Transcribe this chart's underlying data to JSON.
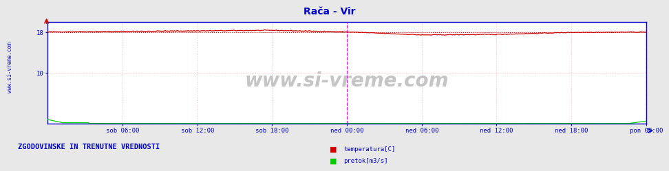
{
  "title": "Rača - Vir",
  "title_color": "#0000cc",
  "title_fontsize": 10,
  "bg_color": "#e8e8e8",
  "plot_bg_color": "#ffffff",
  "xlim": [
    0,
    576
  ],
  "ylim": [
    0,
    20
  ],
  "xtick_labels": [
    "sob 06:00",
    "sob 12:00",
    "sob 18:00",
    "ned 00:00",
    "ned 06:00",
    "ned 12:00",
    "ned 18:00",
    "pon 00:00"
  ],
  "xtick_positions": [
    72,
    144,
    216,
    288,
    360,
    432,
    504,
    576
  ],
  "temp_color": "#cc0000",
  "temp_avg_color": "#cc0000",
  "pretok_color": "#00cc00",
  "magenta_line_x": 288,
  "right_line_x": 576,
  "watermark": "www.si-vreme.com",
  "watermark_color": "#bbbbbb",
  "watermark_fontsize": 20,
  "legend_temp_label": "temperatura[C]",
  "legend_pretok_label": "pretok[m3/s]",
  "legend_temp_color": "#cc0000",
  "legend_pretok_color": "#00cc00",
  "footer_text": "ZGODOVINSKE IN TRENUTNE VREDNOSTI",
  "footer_color": "#0000cc",
  "footer_fontsize": 7.5,
  "axis_color": "#0000cc",
  "grid_color": "#ffbbbb",
  "grid_style": ":",
  "side_watermark": "www.si-vreme.com",
  "side_watermark_color": "#0000cc"
}
